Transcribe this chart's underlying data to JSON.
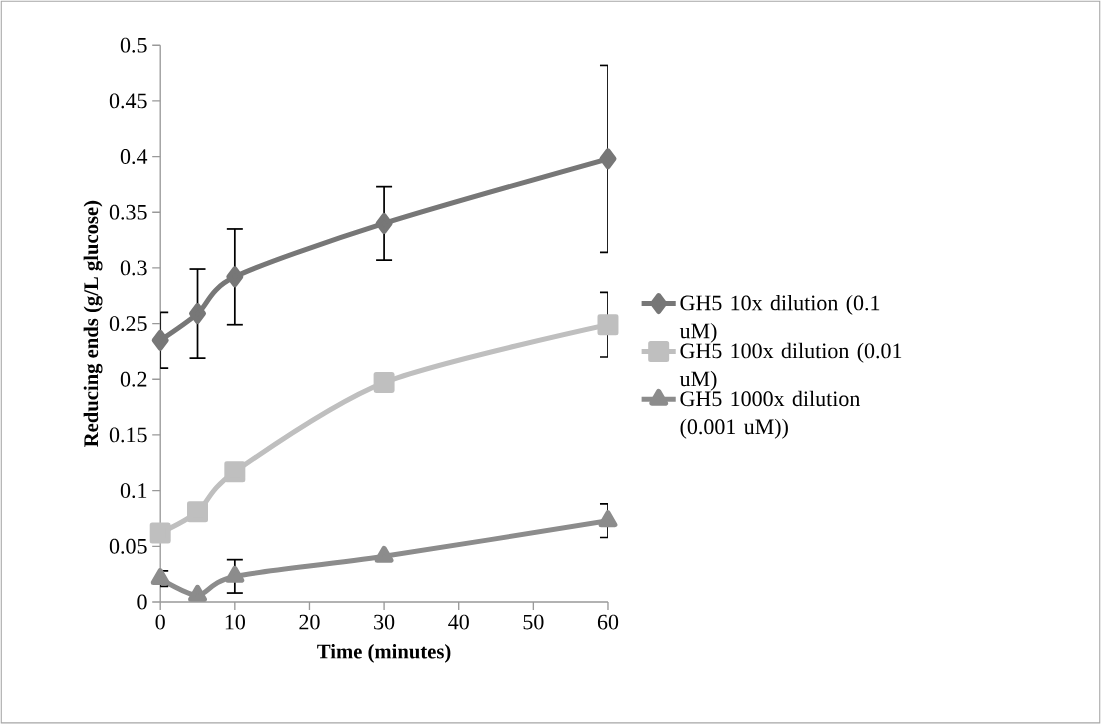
{
  "chart_data": {
    "type": "line",
    "xlabel": "Time (minutes)",
    "ylabel": "Reducing ends (g/L glucose)",
    "x": [
      0,
      5,
      10,
      30,
      60
    ],
    "series": [
      {
        "name": "GH5 10x dilution (0.1 uM)",
        "color": "#777777",
        "marker": "diamond",
        "values": [
          0.235,
          0.259,
          0.292,
          0.34,
          0.398
        ],
        "errors": [
          0.025,
          0.04,
          0.043,
          0.033,
          0.084
        ]
      },
      {
        "name": "GH5 100x dilution (0.01 uM)",
        "color": "#bfbfbf",
        "marker": "square",
        "values": [
          0.062,
          0.081,
          0.117,
          0.197,
          0.249
        ],
        "errors": [
          null,
          null,
          null,
          null,
          0.029
        ]
      },
      {
        "name": "GH5 1000x dilution (0.001 uM))",
        "color": "#8c8c8c",
        "marker": "triangle",
        "values": [
          0.021,
          0.006,
          0.023,
          0.041,
          0.073
        ],
        "errors": [
          0.007,
          null,
          0.015,
          null,
          0.015
        ]
      }
    ],
    "xlim": [
      0,
      60
    ],
    "xticks": [
      0,
      10,
      20,
      30,
      40,
      50,
      60
    ],
    "ylim": [
      0,
      0.5
    ],
    "yticks": [
      0,
      0.05,
      0.1,
      0.15,
      0.2,
      0.25,
      0.3,
      0.35,
      0.4,
      0.45,
      0.5
    ],
    "grid": false,
    "legend": "right",
    "line_style": "solid"
  }
}
